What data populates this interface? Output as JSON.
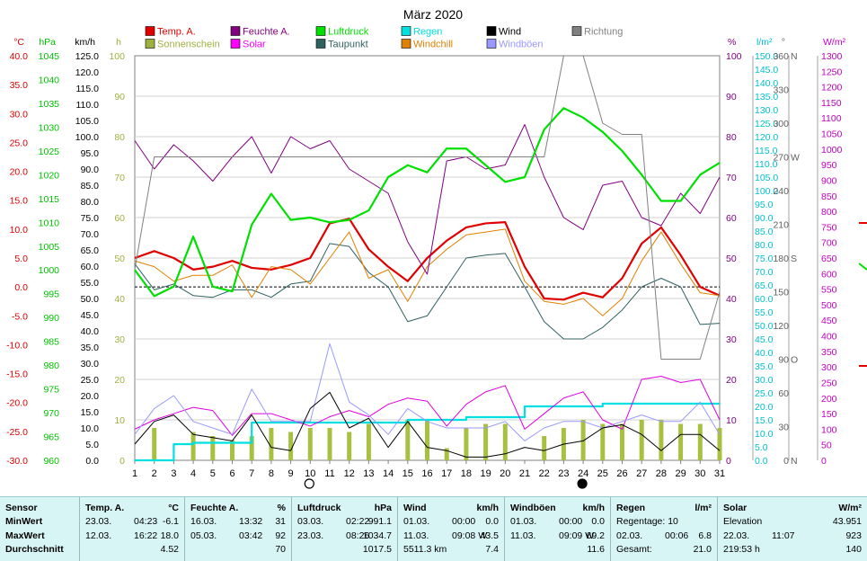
{
  "chart_data": {
    "type": "line",
    "title": "März 2020",
    "x": [
      1,
      2,
      3,
      4,
      5,
      6,
      7,
      8,
      9,
      10,
      11,
      12,
      13,
      14,
      15,
      16,
      17,
      18,
      19,
      20,
      21,
      22,
      23,
      24,
      25,
      26,
      27,
      28,
      29,
      30,
      31
    ],
    "xlim": [
      1,
      31
    ],
    "axes": {
      "left": [
        {
          "id": "temp",
          "unit": "°C",
          "color": "#e00000",
          "ticks": [
            "40.0",
            "35.0",
            "30.0",
            "25.0",
            "20.0",
            "15.0",
            "10.0",
            "5.0",
            "0.0",
            "-5.0",
            "-10.0",
            "-15.0",
            "-20.0",
            "-25.0",
            "-30.0"
          ],
          "range": [
            -30,
            40
          ]
        },
        {
          "id": "press",
          "unit": "hPa",
          "color": "#00c000",
          "ticks": [
            "1045",
            "1040",
            "1035",
            "1030",
            "1025",
            "1020",
            "1015",
            "1010",
            "1005",
            "1000",
            "995",
            "990",
            "985",
            "980",
            "975",
            "970",
            "965",
            "960"
          ],
          "range": [
            960,
            1045
          ]
        },
        {
          "id": "wind",
          "unit": "km/h",
          "color": "#000000",
          "ticks": [
            "125.0",
            "120.0",
            "115.0",
            "110.0",
            "105.0",
            "100.0",
            "95.0",
            "90.0",
            "85.0",
            "80.0",
            "75.0",
            "70.0",
            "65.0",
            "60.0",
            "55.0",
            "50.0",
            "45.0",
            "40.0",
            "35.0",
            "30.0",
            "25.0",
            "20.0",
            "15.0",
            "10.0",
            "5.0",
            "0.0"
          ],
          "range": [
            0,
            125
          ]
        },
        {
          "id": "sun",
          "unit": "h",
          "color": "#a0b040",
          "ticks": [
            "100",
            "90",
            "80",
            "70",
            "60",
            "50",
            "40",
            "30",
            "20",
            "10",
            "0"
          ],
          "range": [
            0,
            100
          ]
        }
      ],
      "right": [
        {
          "id": "hum",
          "unit": "%",
          "color": "#800080",
          "ticks": [
            "100",
            "90",
            "80",
            "70",
            "60",
            "50",
            "40",
            "30",
            "20",
            "10",
            "0"
          ],
          "range": [
            0,
            100
          ]
        },
        {
          "id": "rain",
          "unit": "l/m²",
          "color": "#00c0d0",
          "ticks": [
            "150.0",
            "145.0",
            "140.0",
            "135.0",
            "130.0",
            "125.0",
            "120.0",
            "115.0",
            "110.0",
            "105.0",
            "100.0",
            "95.0",
            "90.0",
            "85.0",
            "80.0",
            "75.0",
            "70.0",
            "65.0",
            "60.0",
            "55.0",
            "50.0",
            "45.0",
            "40.0",
            "35.0",
            "30.0",
            "25.0",
            "20.0",
            "15.0",
            "10.0",
            "5.0",
            "0.0"
          ],
          "range": [
            0,
            150
          ]
        },
        {
          "id": "dir",
          "unit": "°",
          "color": "#606060",
          "ticks": [
            "360",
            "330",
            "300",
            "270",
            "240",
            "210",
            "180",
            "150",
            "120",
            "90",
            "60",
            "30",
            "0"
          ],
          "range": [
            0,
            360
          ]
        },
        {
          "id": "dirl",
          "unit": "",
          "color": "#606060",
          "ticks": [
            "N",
            "",
            "",
            "W",
            "",
            "",
            "S",
            "",
            "",
            "O",
            "",
            "",
            "N"
          ],
          "range": [
            0,
            360
          ]
        },
        {
          "id": "solar",
          "unit": "W/m²",
          "color": "#c000c0",
          "ticks": [
            "1300",
            "1250",
            "1200",
            "1150",
            "1100",
            "1050",
            "1000",
            "950",
            "900",
            "850",
            "800",
            "750",
            "700",
            "650",
            "600",
            "550",
            "500",
            "450",
            "400",
            "350",
            "300",
            "250",
            "200",
            "150",
            "100",
            "50",
            "0"
          ],
          "range": [
            0,
            1300
          ]
        }
      ]
    },
    "legend": [
      {
        "label": "Temp. A.",
        "color": "#e00000"
      },
      {
        "label": "Feuchte A.",
        "color": "#800080"
      },
      {
        "label": "Luftdruck",
        "color": "#00e000"
      },
      {
        "label": "Regen",
        "color": "#00e0e0"
      },
      {
        "label": "Wind",
        "color": "#000000"
      },
      {
        "label": "Richtung",
        "color": "#808080"
      },
      {
        "label": "Sonnenschein",
        "color": "#a0b040"
      },
      {
        "label": "Solar",
        "color": "#ff00ff"
      },
      {
        "label": "Taupunkt",
        "color": "#306060"
      },
      {
        "label": "Windchill",
        "color": "#e08000"
      },
      {
        "label": "Windböen",
        "color": "#9999ff"
      }
    ],
    "series": [
      {
        "name": "Temp. A.",
        "axis": "temp",
        "color": "#e00000",
        "width": 2.2,
        "values": [
          5.0,
          6.2,
          5.0,
          3.0,
          3.5,
          4.5,
          3.3,
          3.0,
          3.8,
          5.0,
          11.0,
          11.8,
          6.5,
          3.5,
          1.0,
          5.0,
          8.0,
          10.3,
          11.0,
          11.2,
          3.5,
          -2.0,
          -2.2,
          -1.0,
          -1.8,
          1.5,
          7.5,
          10.3,
          5.5,
          0.0,
          -1.5
        ]
      },
      {
        "name": "Taupunkt",
        "axis": "temp",
        "color": "#306060",
        "width": 1,
        "values": [
          4.0,
          -0.5,
          0.5,
          -1.5,
          -1.8,
          -0.5,
          -0.5,
          -1.8,
          0.5,
          1.0,
          7.5,
          7.0,
          2.5,
          0.0,
          -6.0,
          -5.0,
          0.0,
          5.0,
          5.5,
          5.8,
          0.0,
          -6.0,
          -9.0,
          -9.0,
          -7.0,
          -4.0,
          0.0,
          1.5,
          0.0,
          -6.5,
          -6.3
        ]
      },
      {
        "name": "Windchill",
        "axis": "temp",
        "color": "#e08000",
        "width": 1,
        "values": [
          4.5,
          3.5,
          1.0,
          2.0,
          2.0,
          3.8,
          -1.8,
          3.5,
          3.0,
          0.5,
          5.0,
          9.5,
          1.5,
          3.0,
          -2.5,
          3.5,
          6.5,
          9.0,
          9.5,
          10.0,
          1.0,
          -2.5,
          -3.0,
          -2.0,
          -5.0,
          -2.0,
          4.5,
          9.5,
          4.0,
          -1.0,
          -1.5
        ]
      },
      {
        "name": "Feuchte A.",
        "axis": "hum",
        "color": "#800080",
        "width": 1,
        "values": [
          79,
          72,
          78,
          74,
          69,
          75,
          80,
          71,
          80,
          77,
          79,
          72,
          69,
          66,
          54,
          46,
          74,
          75,
          72,
          73,
          83,
          70,
          60,
          57,
          68,
          69,
          60,
          58,
          66,
          61,
          70
        ]
      },
      {
        "name": "Luftdruck",
        "axis": "press",
        "color": "#00e000",
        "width": 2.2,
        "values": [
          1000,
          994.5,
          996.5,
          1007,
          996.5,
          995.5,
          1009.5,
          1016,
          1010.5,
          1011,
          1010,
          1010.5,
          1012.5,
          1019.5,
          1022,
          1020.5,
          1025.5,
          1025.5,
          1022,
          1018.5,
          1019.5,
          1029.5,
          1034,
          1032,
          1029,
          1025,
          1020,
          1014.5,
          1014.5,
          1020,
          1022.5
        ]
      },
      {
        "name": "Richtung",
        "axis": "dir",
        "color": "#808080",
        "width": 1,
        "values": [
          170,
          270,
          270,
          270,
          270,
          270,
          270,
          270,
          270,
          270,
          270,
          270,
          270,
          270,
          270,
          270,
          270,
          270,
          270,
          270,
          270,
          270,
          360,
          360,
          300,
          290,
          290,
          90,
          90,
          90,
          150
        ]
      },
      {
        "name": "Regen",
        "axis": "rain",
        "color": "#00e0e0",
        "width": 2.2,
        "step": true,
        "values": [
          0,
          0,
          6,
          6.5,
          6.5,
          6.5,
          14,
          14,
          14,
          14,
          14,
          14,
          14,
          14,
          15,
          15,
          15,
          16,
          16,
          16,
          20,
          20,
          20,
          20,
          21,
          21,
          21,
          21,
          21,
          21,
          21
        ]
      },
      {
        "name": "Solar",
        "axis": "solar",
        "color": "#e000e0",
        "width": 1,
        "values": [
          100,
          130,
          150,
          170,
          160,
          80,
          150,
          150,
          130,
          110,
          140,
          160,
          140,
          180,
          200,
          190,
          110,
          180,
          220,
          240,
          100,
          150,
          200,
          220,
          130,
          100,
          260,
          270,
          250,
          260,
          130
        ]
      },
      {
        "name": "Windböen",
        "axis": "wind",
        "color": "#9999ff",
        "width": 1,
        "values": [
          8,
          16,
          20,
          12,
          10,
          8,
          22,
          12,
          12,
          12,
          36,
          18,
          14,
          8,
          16,
          12,
          10,
          10,
          10,
          12,
          6,
          10,
          12,
          12,
          10,
          12,
          14,
          12,
          12,
          18,
          8
        ]
      },
      {
        "name": "Wind",
        "axis": "wind",
        "color": "#000000",
        "width": 1,
        "values": [
          5,
          12,
          14,
          8,
          7,
          6,
          14,
          4,
          3,
          16,
          21,
          10,
          13,
          4,
          12,
          4,
          3,
          1,
          1,
          2,
          4,
          3,
          5,
          6,
          10,
          11,
          8,
          3,
          8,
          8,
          3
        ]
      }
    ],
    "bars": {
      "name": "Sonnenschein",
      "axis": "sun",
      "color": "#a8c040",
      "values": [
        0,
        8,
        0,
        7,
        6,
        5,
        6,
        8,
        7,
        8,
        8,
        7,
        9,
        0,
        10,
        10,
        3,
        8,
        9,
        9,
        0,
        6,
        8,
        10,
        9,
        9,
        10,
        10,
        9,
        9,
        8
      ]
    },
    "refline": {
      "axis": "temp",
      "value": 0.0
    },
    "markers": [
      {
        "x": 10,
        "kind": "full moon"
      },
      {
        "x": 24,
        "kind": "new moon"
      }
    ]
  },
  "table": [
    {
      "title": "Sensor",
      "unit": "",
      "rows": [
        {
          "d": "MinWert"
        },
        {
          "d": "MaxWert"
        },
        {
          "d": "Durchschnitt"
        }
      ]
    },
    {
      "title": "Temp. A.",
      "unit": "°C",
      "rows": [
        {
          "d": "23.03.",
          "t": "04:23",
          "v": "-6.1"
        },
        {
          "d": "12.03.",
          "t": "16:22",
          "v": "18.0"
        },
        {
          "d": "",
          "t": "",
          "v": "4.52"
        }
      ]
    },
    {
      "title": "Feuchte A.",
      "unit": "%",
      "rows": [
        {
          "d": "16.03.",
          "t": "13:32",
          "v": "31"
        },
        {
          "d": "05.03.",
          "t": "03:42",
          "v": "92"
        },
        {
          "d": "",
          "t": "",
          "v": "70"
        }
      ]
    },
    {
      "title": "Luftdruck",
      "unit": "hPa",
      "rows": [
        {
          "d": "03.03.",
          "t": "02:22",
          "v": "991.1"
        },
        {
          "d": "23.03.",
          "t": "08:26",
          "v": "1034.7"
        },
        {
          "d": "",
          "t": "",
          "v": "1017.5"
        }
      ]
    },
    {
      "title": "Wind",
      "unit": "km/h",
      "rows": [
        {
          "d": "01.03.",
          "t": "00:00",
          "v": "0.0"
        },
        {
          "d": "11.03.",
          "t": "09:08 W",
          "v": "43.5"
        },
        {
          "d": "5511.3 km",
          "t": "",
          "v": "7.4"
        }
      ]
    },
    {
      "title": "Windböen",
      "unit": "km/h",
      "rows": [
        {
          "d": "01.03.",
          "t": "00:00",
          "v": "0.0"
        },
        {
          "d": "11.03.",
          "t": "09:09 W",
          "v": "69.2"
        },
        {
          "d": "",
          "t": "",
          "v": "11.6"
        }
      ]
    },
    {
      "title": "Regen",
      "unit": "l/m²",
      "rows": [
        {
          "d": "Regentage: 10",
          "t": "",
          "v": ""
        },
        {
          "d": "02.03.",
          "t": "00:06",
          "v": "6.8"
        },
        {
          "d": "Gesamt:",
          "t": "",
          "v": "21.0"
        }
      ]
    },
    {
      "title": "Solar",
      "unit": "W/m²",
      "rows": [
        {
          "d": "Elevation",
          "t": "",
          "v": "43.951"
        },
        {
          "d": "22.03.",
          "t": "11:07",
          "v": "923"
        },
        {
          "d": "219:53 h",
          "t": "",
          "v": "140"
        }
      ]
    }
  ]
}
